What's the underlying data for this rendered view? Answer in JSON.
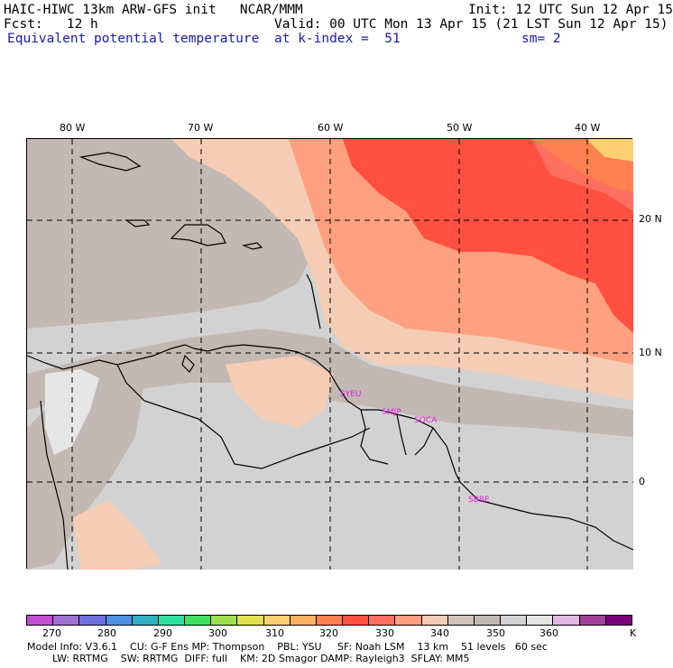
{
  "header": {
    "model_title": "HAIC-HIWC 13km ARW-GFS init   NCAR/MMM",
    "init": "Init: 12 UTC Sun 12 Apr 15",
    "fcst": "Fcst:   12 h",
    "valid": "Valid: 00 UTC Mon 13 Apr 15 (21 LST Sun 12 Apr 15)",
    "field": "Equivalent potential temperature",
    "level": "at k-index =  51",
    "smoothing": "sm= 2"
  },
  "map": {
    "longitude_labels": [
      "80 W",
      "70 W",
      "60 W",
      "50 W",
      "40 W"
    ],
    "latitude_labels": [
      "20 N",
      "10 N",
      "0"
    ],
    "stations": [
      "SYEU",
      "SMJP",
      "SOCA",
      "SBBE"
    ]
  },
  "colorbar": {
    "colors": [
      "#c050d0",
      "#a070d0",
      "#7070e0",
      "#5090e0",
      "#30b0c0",
      "#30e0a0",
      "#40e060",
      "#a0e050",
      "#e0e050",
      "#ffd070",
      "#ffb060",
      "#ff8050",
      "#ff5040",
      "#ff7060",
      "#ffa080",
      "#f5cdb4",
      "#d2c3b9",
      "#c3b9b4",
      "#d2d2d2",
      "#e6e6e6",
      "#e0b8e0",
      "#a0409a",
      "#780078"
    ],
    "tick_labels": [
      "270",
      "280",
      "290",
      "300",
      "310",
      "320",
      "330",
      "340",
      "350",
      "360",
      "K"
    ]
  },
  "footer": {
    "line1": "Model Info: V3.6.1    CU: G-F Ens MP: Thompson    PBL: YSU     SF: Noah LSM    13 km    51 levels   60 sec",
    "line2": "        LW: RRTMG    SW: RRTMG  DIFF: full    KM: 2D Smagor DAMP: Rayleigh3  SFLAY: MM5"
  }
}
